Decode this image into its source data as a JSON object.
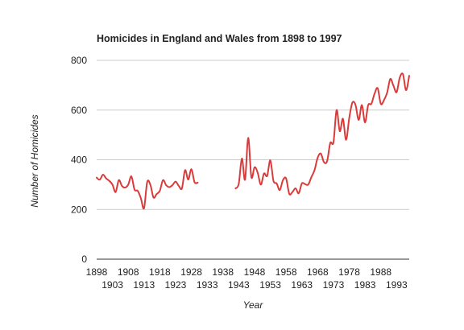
{
  "chart_data": {
    "type": "line",
    "title": "Homicides in England and Wales from 1898 to 1997",
    "xlabel": "Year",
    "ylabel": "Number of Homicides",
    "xlim": [
      1898,
      1997
    ],
    "ylim": [
      0,
      800
    ],
    "y_ticks": [
      0,
      200,
      400,
      600,
      800
    ],
    "x_ticks_row1": [
      1898,
      1908,
      1918,
      1928,
      1938,
      1948,
      1958,
      1968,
      1978,
      1988
    ],
    "x_ticks_row2": [
      1903,
      1913,
      1923,
      1933,
      1943,
      1953,
      1963,
      1973,
      1983,
      1993
    ],
    "grid": true,
    "legend": "none",
    "line_color": "#d93b3b",
    "series": [
      {
        "values": [
          [
            1898,
            328
          ],
          [
            1899,
            320
          ],
          [
            1900,
            340
          ],
          [
            1901,
            325
          ],
          [
            1902,
            315
          ],
          [
            1903,
            300
          ],
          [
            1904,
            270
          ],
          [
            1905,
            318
          ],
          [
            1906,
            295
          ],
          [
            1907,
            288
          ],
          [
            1908,
            300
          ],
          [
            1909,
            333
          ],
          [
            1910,
            280
          ],
          [
            1911,
            275
          ],
          [
            1912,
            245
          ],
          [
            1913,
            205
          ],
          [
            1914,
            310
          ],
          [
            1915,
            300
          ],
          [
            1916,
            248
          ],
          [
            1917,
            262
          ],
          [
            1918,
            275
          ],
          [
            1919,
            318
          ],
          [
            1920,
            298
          ],
          [
            1921,
            290
          ],
          [
            1922,
            298
          ],
          [
            1923,
            312
          ],
          [
            1924,
            295
          ],
          [
            1925,
            285
          ],
          [
            1926,
            358
          ],
          [
            1927,
            320
          ],
          [
            1928,
            362
          ],
          [
            1929,
            310
          ],
          [
            1930,
            308
          ],
          null,
          [
            1942,
            285
          ],
          [
            1943,
            303
          ],
          [
            1944,
            405
          ],
          [
            1945,
            320
          ],
          [
            1946,
            488
          ],
          [
            1947,
            330
          ],
          [
            1948,
            370
          ],
          [
            1949,
            348
          ],
          [
            1950,
            300
          ],
          [
            1951,
            345
          ],
          [
            1952,
            335
          ],
          [
            1953,
            398
          ],
          [
            1954,
            315
          ],
          [
            1955,
            305
          ],
          [
            1956,
            278
          ],
          [
            1957,
            318
          ],
          [
            1958,
            325
          ],
          [
            1959,
            263
          ],
          [
            1960,
            270
          ],
          [
            1961,
            285
          ],
          [
            1962,
            265
          ],
          [
            1963,
            305
          ],
          [
            1964,
            302
          ],
          [
            1965,
            300
          ],
          [
            1966,
            330
          ],
          [
            1967,
            358
          ],
          [
            1968,
            408
          ],
          [
            1969,
            425
          ],
          [
            1970,
            390
          ],
          [
            1971,
            395
          ],
          [
            1972,
            468
          ],
          [
            1973,
            470
          ],
          [
            1974,
            600
          ],
          [
            1975,
            515
          ],
          [
            1976,
            565
          ],
          [
            1977,
            480
          ],
          [
            1978,
            568
          ],
          [
            1979,
            630
          ],
          [
            1980,
            620
          ],
          [
            1981,
            560
          ],
          [
            1982,
            620
          ],
          [
            1983,
            550
          ],
          [
            1984,
            620
          ],
          [
            1985,
            625
          ],
          [
            1986,
            665
          ],
          [
            1987,
            688
          ],
          [
            1988,
            625
          ],
          [
            1989,
            640
          ],
          [
            1990,
            670
          ],
          [
            1991,
            725
          ],
          [
            1992,
            698
          ],
          [
            1993,
            672
          ],
          [
            1994,
            730
          ],
          [
            1995,
            745
          ],
          [
            1996,
            680
          ],
          [
            1997,
            738
          ]
        ]
      }
    ]
  }
}
